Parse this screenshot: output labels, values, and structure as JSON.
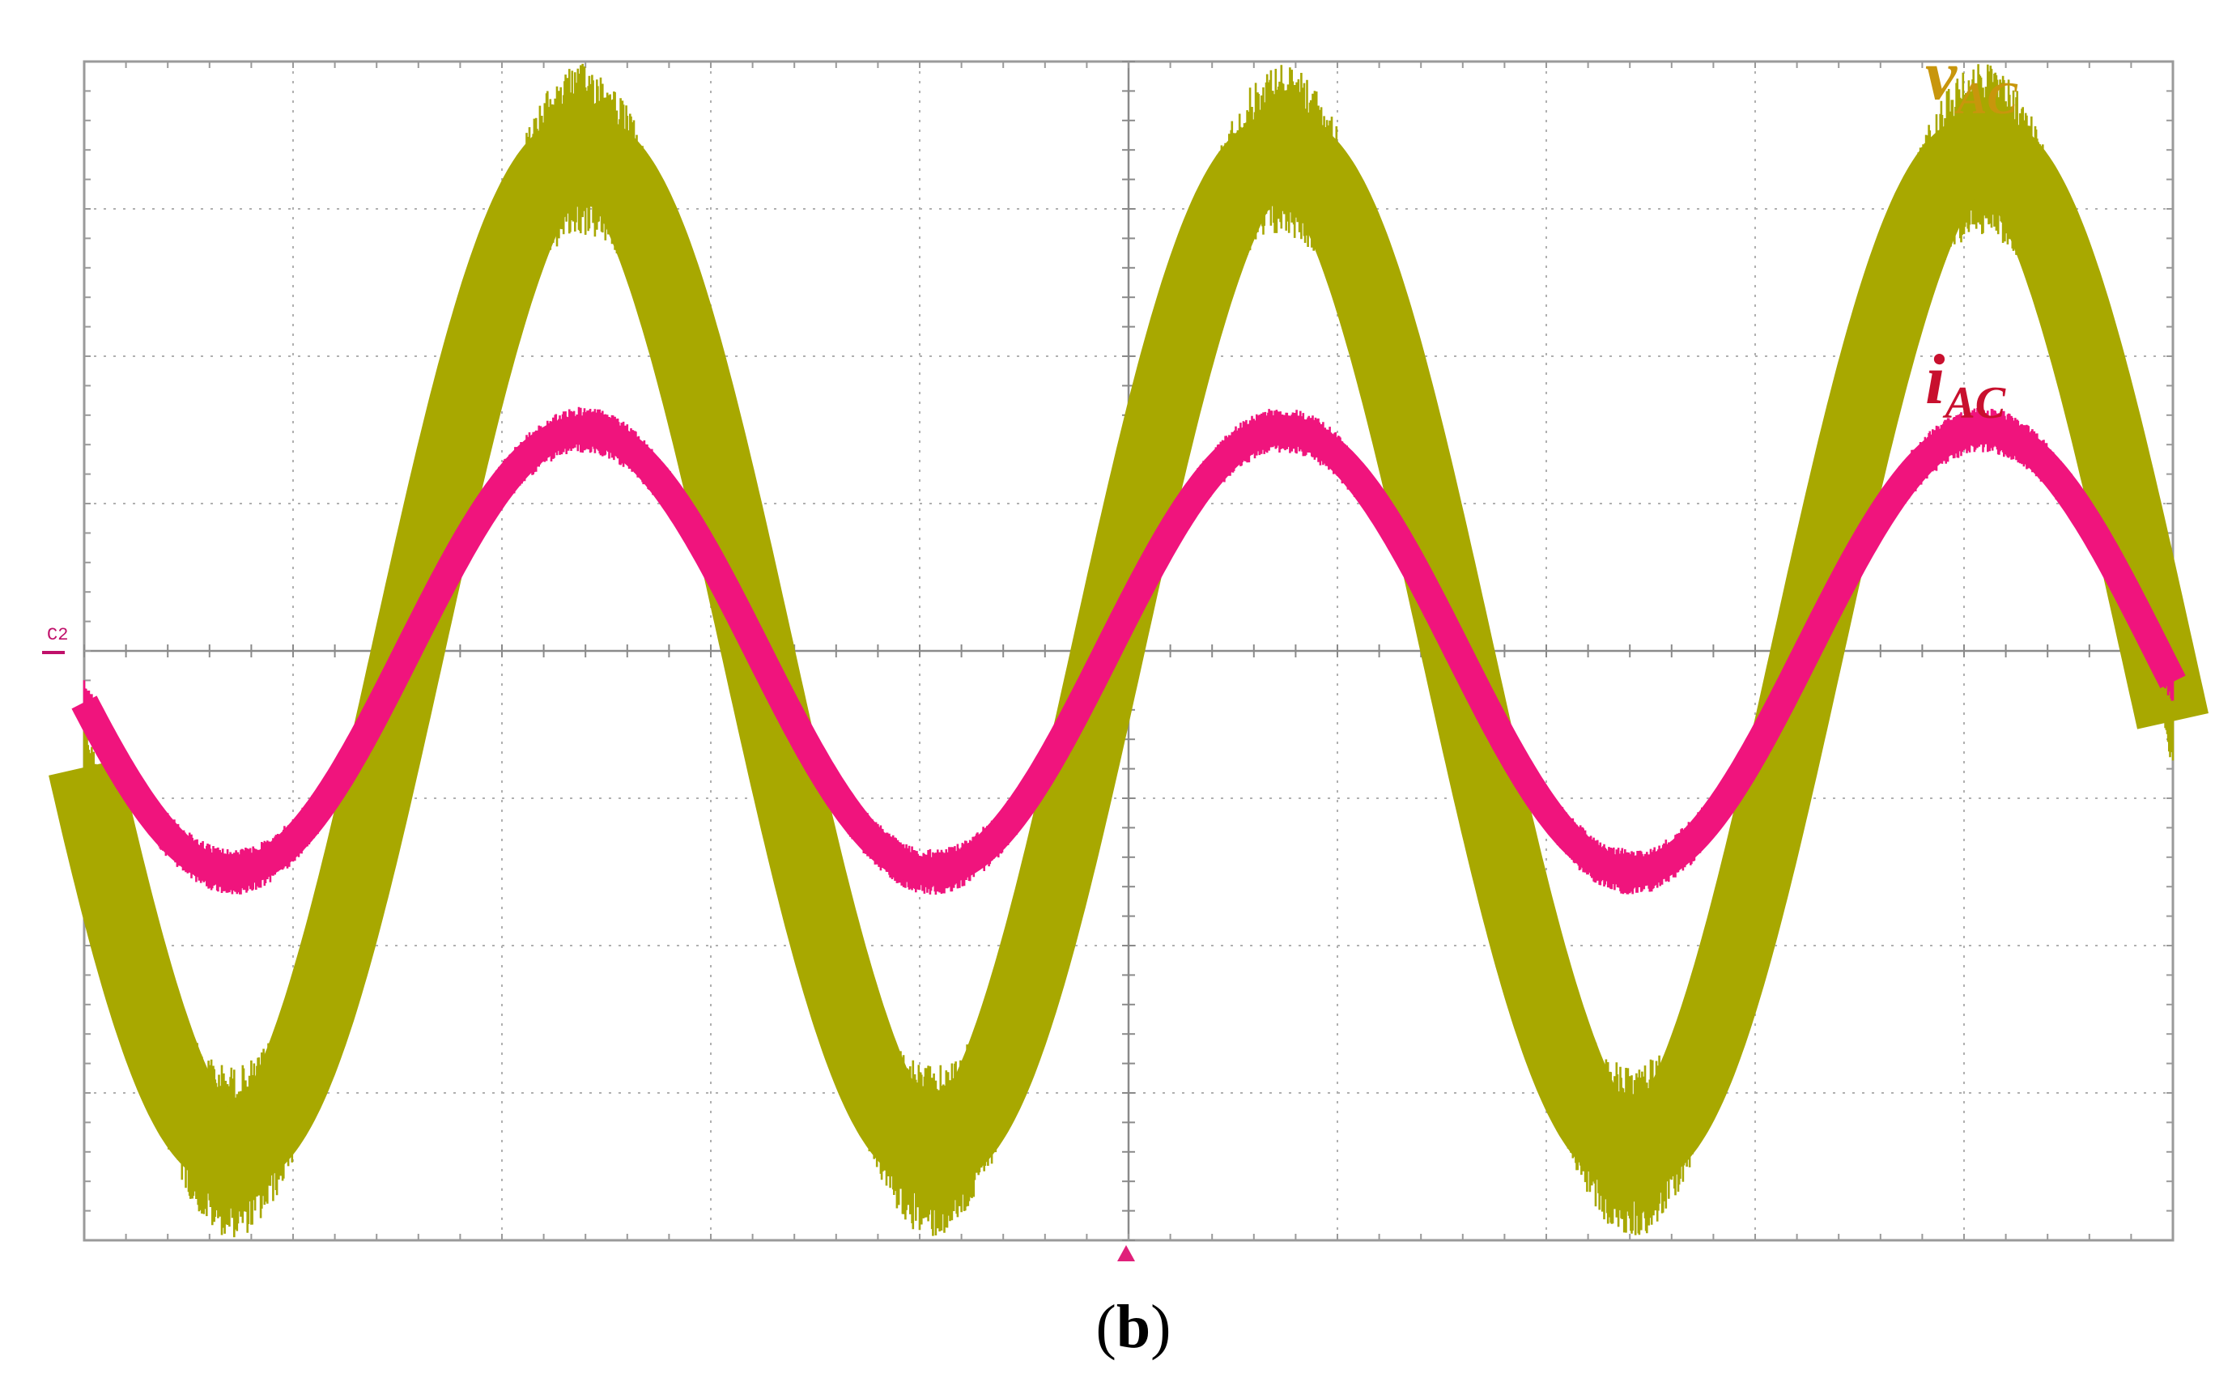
{
  "figure": {
    "caption_open": "(",
    "caption_letter": "b",
    "caption_close": ")"
  },
  "chart_data": {
    "type": "line",
    "grid": true,
    "grid_divisions": {
      "x": 10,
      "y": 8
    },
    "x_range_div": [
      0,
      10
    ],
    "y_range_div": [
      -4,
      4
    ],
    "channel_marker": "C2",
    "series": [
      {
        "name": "v",
        "subscript": "AC",
        "color": "#a8a800",
        "label_color": "#c8960c",
        "amplitude_div": 3.4,
        "ripple_div": 0.45,
        "period_div": 3.35,
        "zero_cross_up_div": 1.55,
        "start_value_div": -0.65,
        "end_value_div": -1.1
      },
      {
        "name": "i",
        "subscript": "AC",
        "color": "#f0147d",
        "label_color": "#c8102e",
        "amplitude_div": 1.5,
        "ripple_div": 0.12,
        "period_div": 3.35,
        "zero_cross_up_div": 1.55,
        "start_value_div": -0.45,
        "end_value_div": -0.35
      }
    ]
  }
}
